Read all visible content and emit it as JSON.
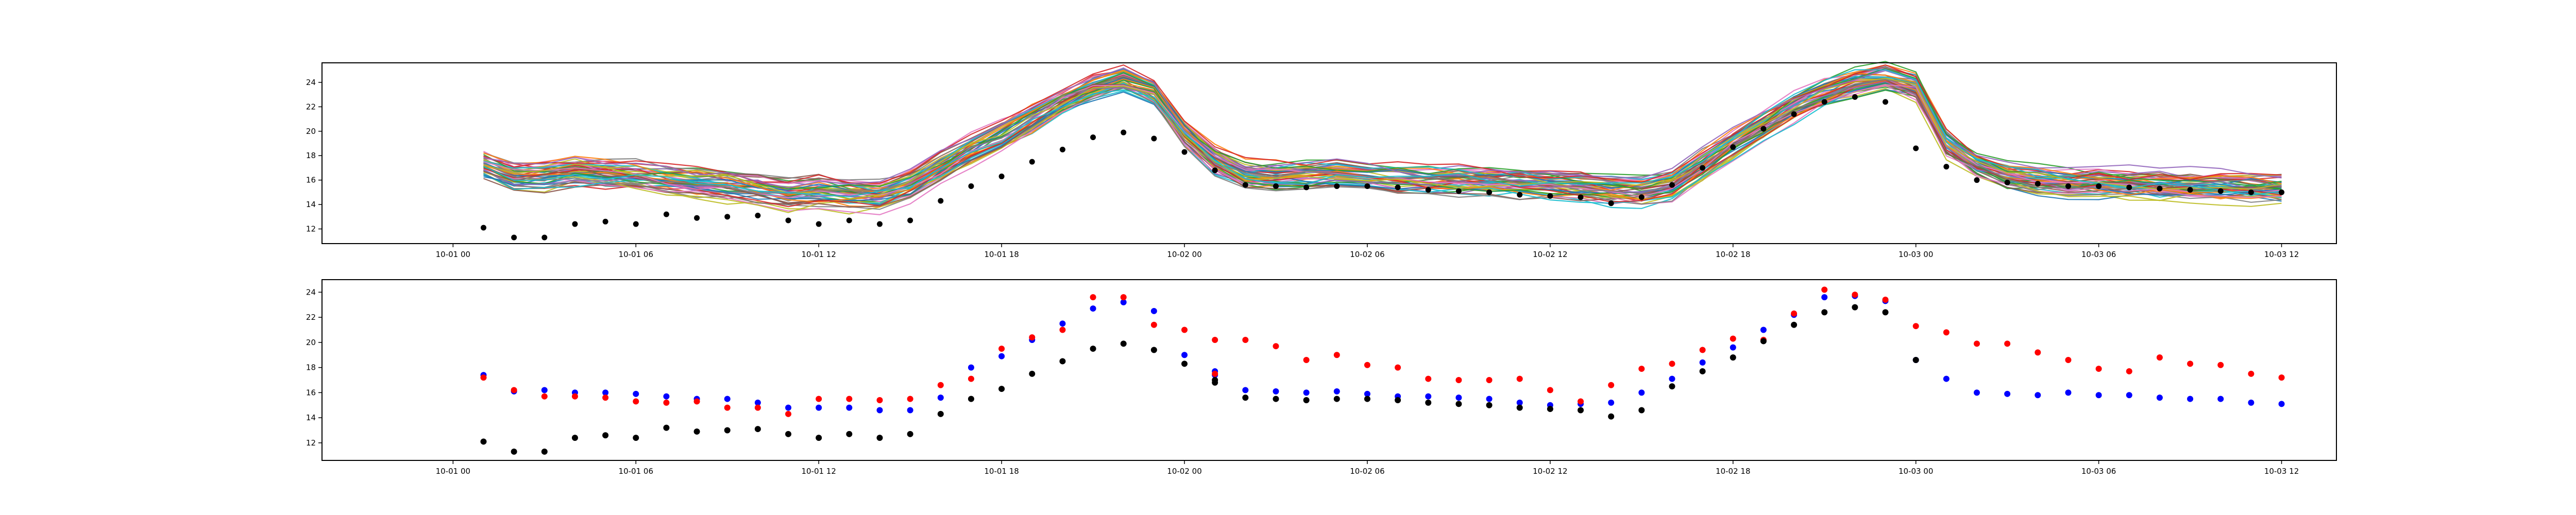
{
  "chart_data": [
    {
      "type": "line",
      "title": "",
      "xlabel": "",
      "ylabel": "",
      "x_ticks": [
        "10-01 00",
        "10-01 06",
        "10-01 12",
        "10-01 18",
        "10-02 00",
        "10-02 06",
        "10-02 12",
        "10-02 18",
        "10-03 00",
        "10-03 06",
        "10-03 12"
      ],
      "y_ticks": [
        12,
        14,
        16,
        18,
        20,
        22,
        24
      ],
      "xlim_hours": [
        -4.3,
        61.8
      ],
      "ylim": [
        10.8,
        25.6
      ],
      "ensemble": {
        "member_count": 50,
        "x_hours": [
          1,
          2,
          3,
          4,
          5,
          6,
          7,
          8,
          9,
          10,
          11,
          12,
          13,
          14,
          15,
          16,
          17,
          18,
          19,
          20,
          21,
          22,
          23,
          24,
          25,
          26,
          27,
          28,
          29,
          30,
          31,
          32,
          33,
          34,
          35,
          36,
          37,
          38,
          39,
          40,
          41,
          42,
          43,
          44,
          45,
          46,
          47,
          48,
          49,
          50,
          51,
          52,
          53,
          54,
          55,
          56,
          57,
          58,
          59,
          60
        ],
        "mean_values": [
          17.2,
          16.3,
          16.4,
          16.7,
          16.5,
          16.3,
          16.0,
          15.8,
          15.6,
          15.3,
          14.9,
          15.1,
          14.9,
          14.8,
          15.6,
          17.0,
          18.4,
          19.6,
          21.0,
          22.4,
          23.6,
          24.1,
          23.2,
          19.8,
          17.6,
          16.4,
          16.3,
          16.4,
          16.5,
          16.4,
          16.2,
          16.0,
          16.0,
          15.9,
          15.8,
          15.6,
          15.5,
          15.2,
          15.1,
          15.6,
          17.2,
          18.9,
          20.6,
          22.1,
          23.2,
          24.0,
          24.3,
          23.6,
          19.0,
          17.3,
          16.4,
          16.0,
          15.8,
          15.8,
          15.7,
          15.6,
          15.5,
          15.5,
          15.4,
          15.3
        ],
        "colors": [
          "#1f77b4",
          "#ff7f0e",
          "#2ca02c",
          "#d62728",
          "#9467bd",
          "#8c564b",
          "#e377c2",
          "#7f7f7f",
          "#bcbd22",
          "#17becf"
        ]
      },
      "observed": {
        "x_hours": [
          1,
          2,
          3,
          4,
          5,
          6,
          7,
          8,
          9,
          10,
          11,
          12,
          13,
          14,
          15,
          16,
          17,
          18,
          19,
          20,
          21,
          22,
          23,
          24,
          25,
          26,
          27,
          28,
          29,
          30,
          31,
          32,
          33,
          34,
          35,
          36,
          37,
          38,
          39,
          40,
          41,
          42,
          43,
          44,
          45,
          46,
          47,
          48,
          49,
          50,
          51,
          52,
          53,
          54,
          55,
          56,
          57,
          58,
          59,
          60
        ],
        "values": [
          12.1,
          11.3,
          11.3,
          12.4,
          12.6,
          12.4,
          13.2,
          12.9,
          13.0,
          13.1,
          12.7,
          12.4,
          12.7,
          12.4,
          12.7,
          14.3,
          15.5,
          16.3,
          17.5,
          18.5,
          19.5,
          19.9,
          19.4,
          18.3,
          16.8,
          15.6,
          15.5,
          15.4,
          15.5,
          15.5,
          15.4,
          15.2,
          15.1,
          15.0,
          14.8,
          14.7,
          14.6,
          14.1,
          14.6,
          15.6,
          17.0,
          18.7,
          20.2,
          21.4,
          22.4,
          22.8,
          22.4,
          18.6,
          17.1,
          16.0,
          15.8,
          15.7,
          15.5,
          15.5,
          15.4,
          15.3,
          15.2,
          15.1,
          15.0,
          15.0
        ],
        "color": "#000000"
      }
    },
    {
      "type": "scatter",
      "title": "",
      "xlabel": "",
      "ylabel": "",
      "x_ticks": [
        "10-01 00",
        "10-01 06",
        "10-01 12",
        "10-01 18",
        "10-02 00",
        "10-02 06",
        "10-02 12",
        "10-02 18",
        "10-03 00",
        "10-03 06",
        "10-03 12"
      ],
      "y_ticks": [
        12,
        14,
        16,
        18,
        20,
        22,
        24
      ],
      "xlim_hours": [
        -4.3,
        61.8
      ],
      "ylim": [
        10.6,
        25.0
      ],
      "series": [
        {
          "color": "#0000ff",
          "x_hours": [
            1,
            2,
            3,
            4,
            5,
            6,
            7,
            8,
            9,
            10,
            11,
            12,
            13,
            14,
            15,
            16,
            17,
            18,
            19,
            20,
            21,
            22,
            23,
            24,
            25,
            25,
            26,
            27,
            28,
            29,
            30,
            31,
            32,
            33,
            34,
            35,
            36,
            37,
            38,
            39,
            40,
            41,
            42,
            43,
            44,
            45,
            46,
            47,
            48,
            49,
            50,
            51,
            52,
            53,
            54,
            55,
            56,
            57,
            58,
            59,
            60
          ],
          "values": [
            17.4,
            16.1,
            16.2,
            16.0,
            16.0,
            15.9,
            15.7,
            15.5,
            15.5,
            15.2,
            14.8,
            14.8,
            14.8,
            14.6,
            14.6,
            15.6,
            18.0,
            18.9,
            20.2,
            21.5,
            22.7,
            23.2,
            22.5,
            19.0,
            17.7,
            17.4,
            16.2,
            16.1,
            16.0,
            16.1,
            15.9,
            15.7,
            15.7,
            15.6,
            15.5,
            15.2,
            15.0,
            15.1,
            15.2,
            16.0,
            17.1,
            18.4,
            19.6,
            21.0,
            22.2,
            23.6,
            23.7,
            23.3,
            18.6,
            17.1,
            16.0,
            15.9,
            15.8,
            16.0,
            15.8,
            15.8,
            15.6,
            15.5,
            15.5,
            15.2,
            15.1
          ]
        },
        {
          "color": "#ff0000",
          "x_hours": [
            1,
            2,
            3,
            4,
            5,
            6,
            7,
            8,
            9,
            10,
            11,
            12,
            13,
            14,
            15,
            16,
            17,
            18,
            19,
            20,
            21,
            22,
            23,
            24,
            25,
            25,
            26,
            27,
            28,
            29,
            30,
            31,
            32,
            33,
            34,
            35,
            36,
            37,
            38,
            39,
            40,
            41,
            42,
            43,
            44,
            45,
            46,
            47,
            48,
            49,
            50,
            51,
            52,
            53,
            54,
            55,
            56,
            57,
            58,
            59,
            60
          ],
          "values": [
            17.2,
            16.2,
            15.7,
            15.7,
            15.6,
            15.3,
            15.2,
            15.3,
            14.8,
            14.8,
            14.3,
            15.5,
            15.5,
            15.4,
            15.5,
            16.6,
            17.1,
            19.5,
            20.4,
            21.0,
            23.6,
            23.6,
            21.4,
            21.0,
            20.2,
            17.5,
            20.2,
            19.7,
            18.6,
            19.0,
            18.2,
            18.0,
            17.1,
            17.0,
            17.0,
            17.1,
            16.2,
            15.3,
            16.6,
            17.9,
            18.3,
            19.4,
            20.3,
            20.2,
            22.3,
            24.2,
            23.8,
            23.4,
            21.3,
            20.8,
            19.9,
            19.9,
            19.2,
            18.6,
            17.9,
            17.7,
            18.8,
            18.3,
            18.2,
            17.5,
            17.2
          ]
        },
        {
          "color": "#000000",
          "x_hours": [
            1,
            2,
            3,
            4,
            5,
            6,
            7,
            8,
            9,
            10,
            11,
            12,
            13,
            14,
            15,
            16,
            17,
            18,
            19,
            20,
            21,
            22,
            23,
            24,
            25,
            25,
            26,
            27,
            28,
            29,
            30,
            31,
            32,
            33,
            34,
            35,
            36,
            37,
            38,
            39,
            40,
            41,
            42,
            43,
            44,
            45,
            46,
            47,
            48
          ],
          "values": [
            12.1,
            11.3,
            11.3,
            12.4,
            12.6,
            12.4,
            13.2,
            12.9,
            13.0,
            13.1,
            12.7,
            12.4,
            12.7,
            12.4,
            12.7,
            14.3,
            15.5,
            16.3,
            17.5,
            18.5,
            19.5,
            19.9,
            19.4,
            18.3,
            17.0,
            16.8,
            15.6,
            15.5,
            15.4,
            15.5,
            15.5,
            15.4,
            15.2,
            15.1,
            15.0,
            14.8,
            14.7,
            14.6,
            14.1,
            14.6,
            16.5,
            17.7,
            18.8,
            20.1,
            21.4,
            22.4,
            22.8,
            22.4,
            18.6
          ]
        }
      ]
    }
  ]
}
